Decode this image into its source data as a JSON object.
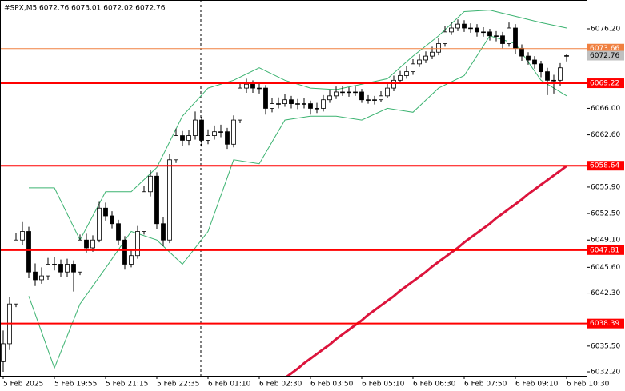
{
  "chart_data": {
    "type": "candlestick",
    "title": "#SPX,M5  6072.76 6073.01 6072.02 6072.76",
    "open": [
      6033.5,
      6035.8,
      6040.9,
      6049.1,
      6050.2,
      6045.0,
      6044.0,
      6044.5,
      6046.0,
      6046.0,
      6045.0,
      6046.0,
      6045.0,
      6049.1,
      6048.1,
      6049.1,
      6053.2,
      6052.2,
      6051.2,
      6049.1,
      6046.0,
      6047.1,
      6050.2,
      6055.3,
      6057.3,
      6051.2,
      6049.1,
      6059.4,
      6062.5,
      6061.9,
      6062.5,
      6064.5,
      6061.9,
      6062.5,
      6063.0,
      6063.0,
      6061.4,
      6064.5,
      6068.6,
      6069.1,
      6068.6,
      6068.6,
      6066.0,
      6066.6,
      6066.6,
      6067.1,
      6066.6,
      6066.6,
      6066.6,
      6066.0,
      6066.0,
      6067.1,
      6067.6,
      6068.1,
      6068.1,
      6068.1,
      6068.1,
      6067.1,
      6067.1,
      6067.1,
      6067.6,
      6068.6,
      6069.6,
      6070.2,
      6070.7,
      6071.7,
      6072.2,
      6072.7,
      6073.2,
      6074.3,
      6075.8,
      6076.3,
      6076.8,
      6076.3,
      6076.3,
      6075.8,
      6075.8,
      6075.3,
      6075.3,
      6074.3,
      6076.3,
      6073.7,
      6072.7,
      6072.2,
      6071.7,
      6070.7,
      6069.6,
      6069.6,
      6072.76
    ],
    "high": [
      6037.5,
      6041.8,
      6050.0,
      6051.4,
      6050.8,
      6046.1,
      6045.6,
      6046.8,
      6046.9,
      6046.6,
      6046.7,
      6046.5,
      6049.8,
      6049.9,
      6049.7,
      6054.0,
      6053.9,
      6052.8,
      6051.7,
      6049.6,
      6047.9,
      6050.9,
      6056.0,
      6058.1,
      6057.8,
      6052.0,
      6060.2,
      6063.4,
      6063.1,
      6063.2,
      6065.6,
      6064.9,
      6063.3,
      6063.8,
      6063.9,
      6063.5,
      6065.1,
      6069.4,
      6069.8,
      6069.6,
      6069.2,
      6069.0,
      6067.3,
      6067.4,
      6067.8,
      6067.6,
      6067.2,
      6067.3,
      6067.0,
      6066.7,
      6067.7,
      6068.3,
      6068.8,
      6068.9,
      6068.7,
      6068.8,
      6068.5,
      6067.7,
      6067.6,
      6068.2,
      6069.2,
      6070.2,
      6070.8,
      6071.4,
      6072.3,
      6072.9,
      6073.3,
      6073.9,
      6075.0,
      6076.5,
      6077.1,
      6077.4,
      6077.3,
      6076.9,
      6076.8,
      6076.4,
      6076.2,
      6075.9,
      6075.8,
      6077.0,
      6076.8,
      6074.2,
      6073.2,
      6072.7,
      6072.1,
      6071.2,
      6070.3,
      6071.8,
      6073.01
    ],
    "low": [
      6032.2,
      6035.0,
      6040.5,
      6048.5,
      6044.2,
      6043.2,
      6043.5,
      6044.0,
      6045.2,
      6044.3,
      6044.4,
      6042.5,
      6044.6,
      6047.5,
      6047.6,
      6048.8,
      6051.6,
      6050.6,
      6048.5,
      6045.3,
      6045.6,
      6046.7,
      6049.8,
      6054.7,
      6050.5,
      6048.3,
      6048.7,
      6059.0,
      6061.2,
      6061.3,
      6062.0,
      6061.1,
      6061.4,
      6062.0,
      6062.3,
      6060.8,
      6061.0,
      6064.1,
      6068.0,
      6068.0,
      6067.9,
      6065.2,
      6065.5,
      6066.0,
      6066.2,
      6066.0,
      6065.9,
      6066.0,
      6065.2,
      6065.4,
      6065.6,
      6066.7,
      6067.2,
      6067.6,
      6067.5,
      6067.6,
      6066.7,
      6066.6,
      6066.5,
      6066.8,
      6067.3,
      6068.2,
      6069.2,
      6069.8,
      6070.3,
      6071.3,
      6071.8,
      6072.3,
      6072.8,
      6073.9,
      6075.4,
      6075.9,
      6075.8,
      6075.7,
      6075.2,
      6075.2,
      6074.7,
      6074.6,
      6073.7,
      6073.9,
      6073.0,
      6072.1,
      6071.6,
      6071.1,
      6070.0,
      6067.7,
      6067.9,
      6068.9,
      6072.02
    ],
    "close": [
      6035.8,
      6040.9,
      6049.1,
      6050.2,
      6045.0,
      6044.0,
      6044.5,
      6046.0,
      6046.0,
      6045.0,
      6046.0,
      6045.0,
      6049.1,
      6048.1,
      6049.1,
      6053.2,
      6052.2,
      6051.2,
      6049.1,
      6046.0,
      6047.1,
      6050.2,
      6055.3,
      6057.3,
      6051.2,
      6049.1,
      6059.4,
      6062.5,
      6061.9,
      6062.5,
      6064.5,
      6061.9,
      6062.5,
      6063.0,
      6063.0,
      6061.4,
      6064.5,
      6068.6,
      6069.1,
      6068.6,
      6068.6,
      6066.0,
      6066.6,
      6066.6,
      6067.1,
      6066.6,
      6066.6,
      6066.6,
      6066.0,
      6066.0,
      6067.1,
      6067.6,
      6068.1,
      6068.1,
      6068.1,
      6068.1,
      6067.1,
      6067.1,
      6067.1,
      6067.6,
      6068.6,
      6069.6,
      6070.2,
      6070.7,
      6071.7,
      6072.2,
      6072.7,
      6073.2,
      6074.3,
      6075.8,
      6076.3,
      6076.8,
      6076.3,
      6076.3,
      6075.8,
      6075.8,
      6075.3,
      6075.3,
      6074.3,
      6076.3,
      6073.7,
      6072.7,
      6072.2,
      6071.7,
      6070.7,
      6069.6,
      6069.6,
      6071.2,
      6072.76
    ],
    "up_color": "#ffffff",
    "down_color": "#000000",
    "outline_color": "#000000",
    "overlays": [
      {
        "color": "#3cb371",
        "width": 1,
        "x": [
          4,
          8,
          12,
          16,
          20,
          24,
          28,
          32,
          36,
          40,
          44,
          48,
          52,
          56,
          60,
          64,
          68,
          72,
          76,
          80,
          84,
          88
        ],
        "values": [
          6055.8,
          6055.8,
          6049.1,
          6055.3,
          6055.3,
          6058.4,
          6065.0,
          6068.6,
          6069.6,
          6071.2,
          6069.6,
          6068.6,
          6068.4,
          6069.1,
          6069.8,
          6072.7,
          6075.3,
          6078.4,
          6078.6,
          6077.8,
          6077.0,
          6076.3
        ]
      },
      {
        "color": "#3cb371",
        "width": 1,
        "x": [
          4,
          8,
          12,
          16,
          20,
          24,
          28,
          32,
          36,
          40,
          44,
          48,
          52,
          56,
          60,
          64,
          68,
          72,
          76,
          80,
          84,
          88
        ],
        "values": [
          6041.9,
          6032.7,
          6040.9,
          6045.5,
          6050.2,
          6049.1,
          6046.0,
          6050.2,
          6059.4,
          6058.9,
          6064.5,
          6065.0,
          6065.0,
          6064.5,
          6066.0,
          6065.5,
          6068.6,
          6070.2,
          6075.3,
          6074.3,
          6069.6,
          6067.6
        ]
      },
      {
        "color": "#dc143c",
        "width": 3,
        "x": [
          44,
          45,
          46,
          47,
          48,
          49,
          50,
          51,
          52,
          53,
          54,
          55,
          56,
          57,
          58,
          59,
          60,
          61,
          62,
          63,
          64,
          65,
          66,
          67,
          68,
          69,
          70,
          71,
          72,
          73,
          74,
          75,
          76,
          77,
          78,
          79,
          80,
          81,
          82,
          83,
          84,
          85,
          86,
          87,
          88
        ],
        "values": [
          6031.4,
          6032.0,
          6032.6,
          6033.3,
          6033.9,
          6034.5,
          6035.1,
          6035.7,
          6036.4,
          6037.0,
          6037.6,
          6038.2,
          6038.8,
          6039.5,
          6040.1,
          6040.7,
          6041.3,
          6041.9,
          6042.6,
          6043.2,
          6043.8,
          6044.4,
          6045.0,
          6045.7,
          6046.3,
          6046.9,
          6047.5,
          6048.1,
          6048.8,
          6049.4,
          6050.0,
          6050.6,
          6051.2,
          6051.9,
          6052.5,
          6053.1,
          6053.7,
          6054.3,
          6055.0,
          6055.6,
          6056.2,
          6056.8,
          6057.4,
          6058.0,
          6058.6
        ]
      }
    ],
    "levels": [
      {
        "value": 6069.22,
        "color": "#ff0000"
      },
      {
        "value": 6058.64,
        "color": "#ff0000"
      },
      {
        "value": 6047.81,
        "color": "#ff0000"
      },
      {
        "value": 6038.39,
        "color": "#ff0000"
      }
    ],
    "ask": {
      "value": 6073.66,
      "color": "#f08040"
    },
    "bid": {
      "value": 6072.76,
      "color": "#c0c0c0"
    },
    "xlim": [
      -0.5,
      91.125
    ],
    "ylim": [
      6031.69,
      6079.89
    ],
    "xticks": [
      {
        "value": 0,
        "label": "5 Feb 2025"
      },
      {
        "value": 8,
        "label": "5 Feb 19:55"
      },
      {
        "value": 16,
        "label": "5 Feb 21:15"
      },
      {
        "value": 24,
        "label": "5 Feb 22:35"
      },
      {
        "value": 32,
        "label": "6 Feb 01:10"
      },
      {
        "value": 40,
        "label": "6 Feb 02:30"
      },
      {
        "value": 48,
        "label": "6 Feb 03:50"
      },
      {
        "value": 56,
        "label": "6 Feb 05:10"
      },
      {
        "value": 64,
        "label": "6 Feb 06:30"
      },
      {
        "value": 72,
        "label": "6 Feb 07:50"
      },
      {
        "value": 80,
        "label": "6 Feb 09:10"
      },
      {
        "value": 88,
        "label": "6 Feb 10:30"
      }
    ],
    "yticks": [
      {
        "value": 6076.2,
        "label": "6076.20"
      },
      {
        "value": 6066,
        "label": "6066.00"
      },
      {
        "value": 6062.6,
        "label": "6062.60"
      },
      {
        "value": 6055.9,
        "label": "6055.90"
      },
      {
        "value": 6052.5,
        "label": "6052.50"
      },
      {
        "value": 6049.1,
        "label": "6049.10"
      },
      {
        "value": 6045.6,
        "label": "6045.60"
      },
      {
        "value": 6042.3,
        "label": "6042.30"
      },
      {
        "value": 6035.5,
        "label": "6035.50"
      },
      {
        "value": 6032.2,
        "label": "6032.20"
      }
    ]
  }
}
